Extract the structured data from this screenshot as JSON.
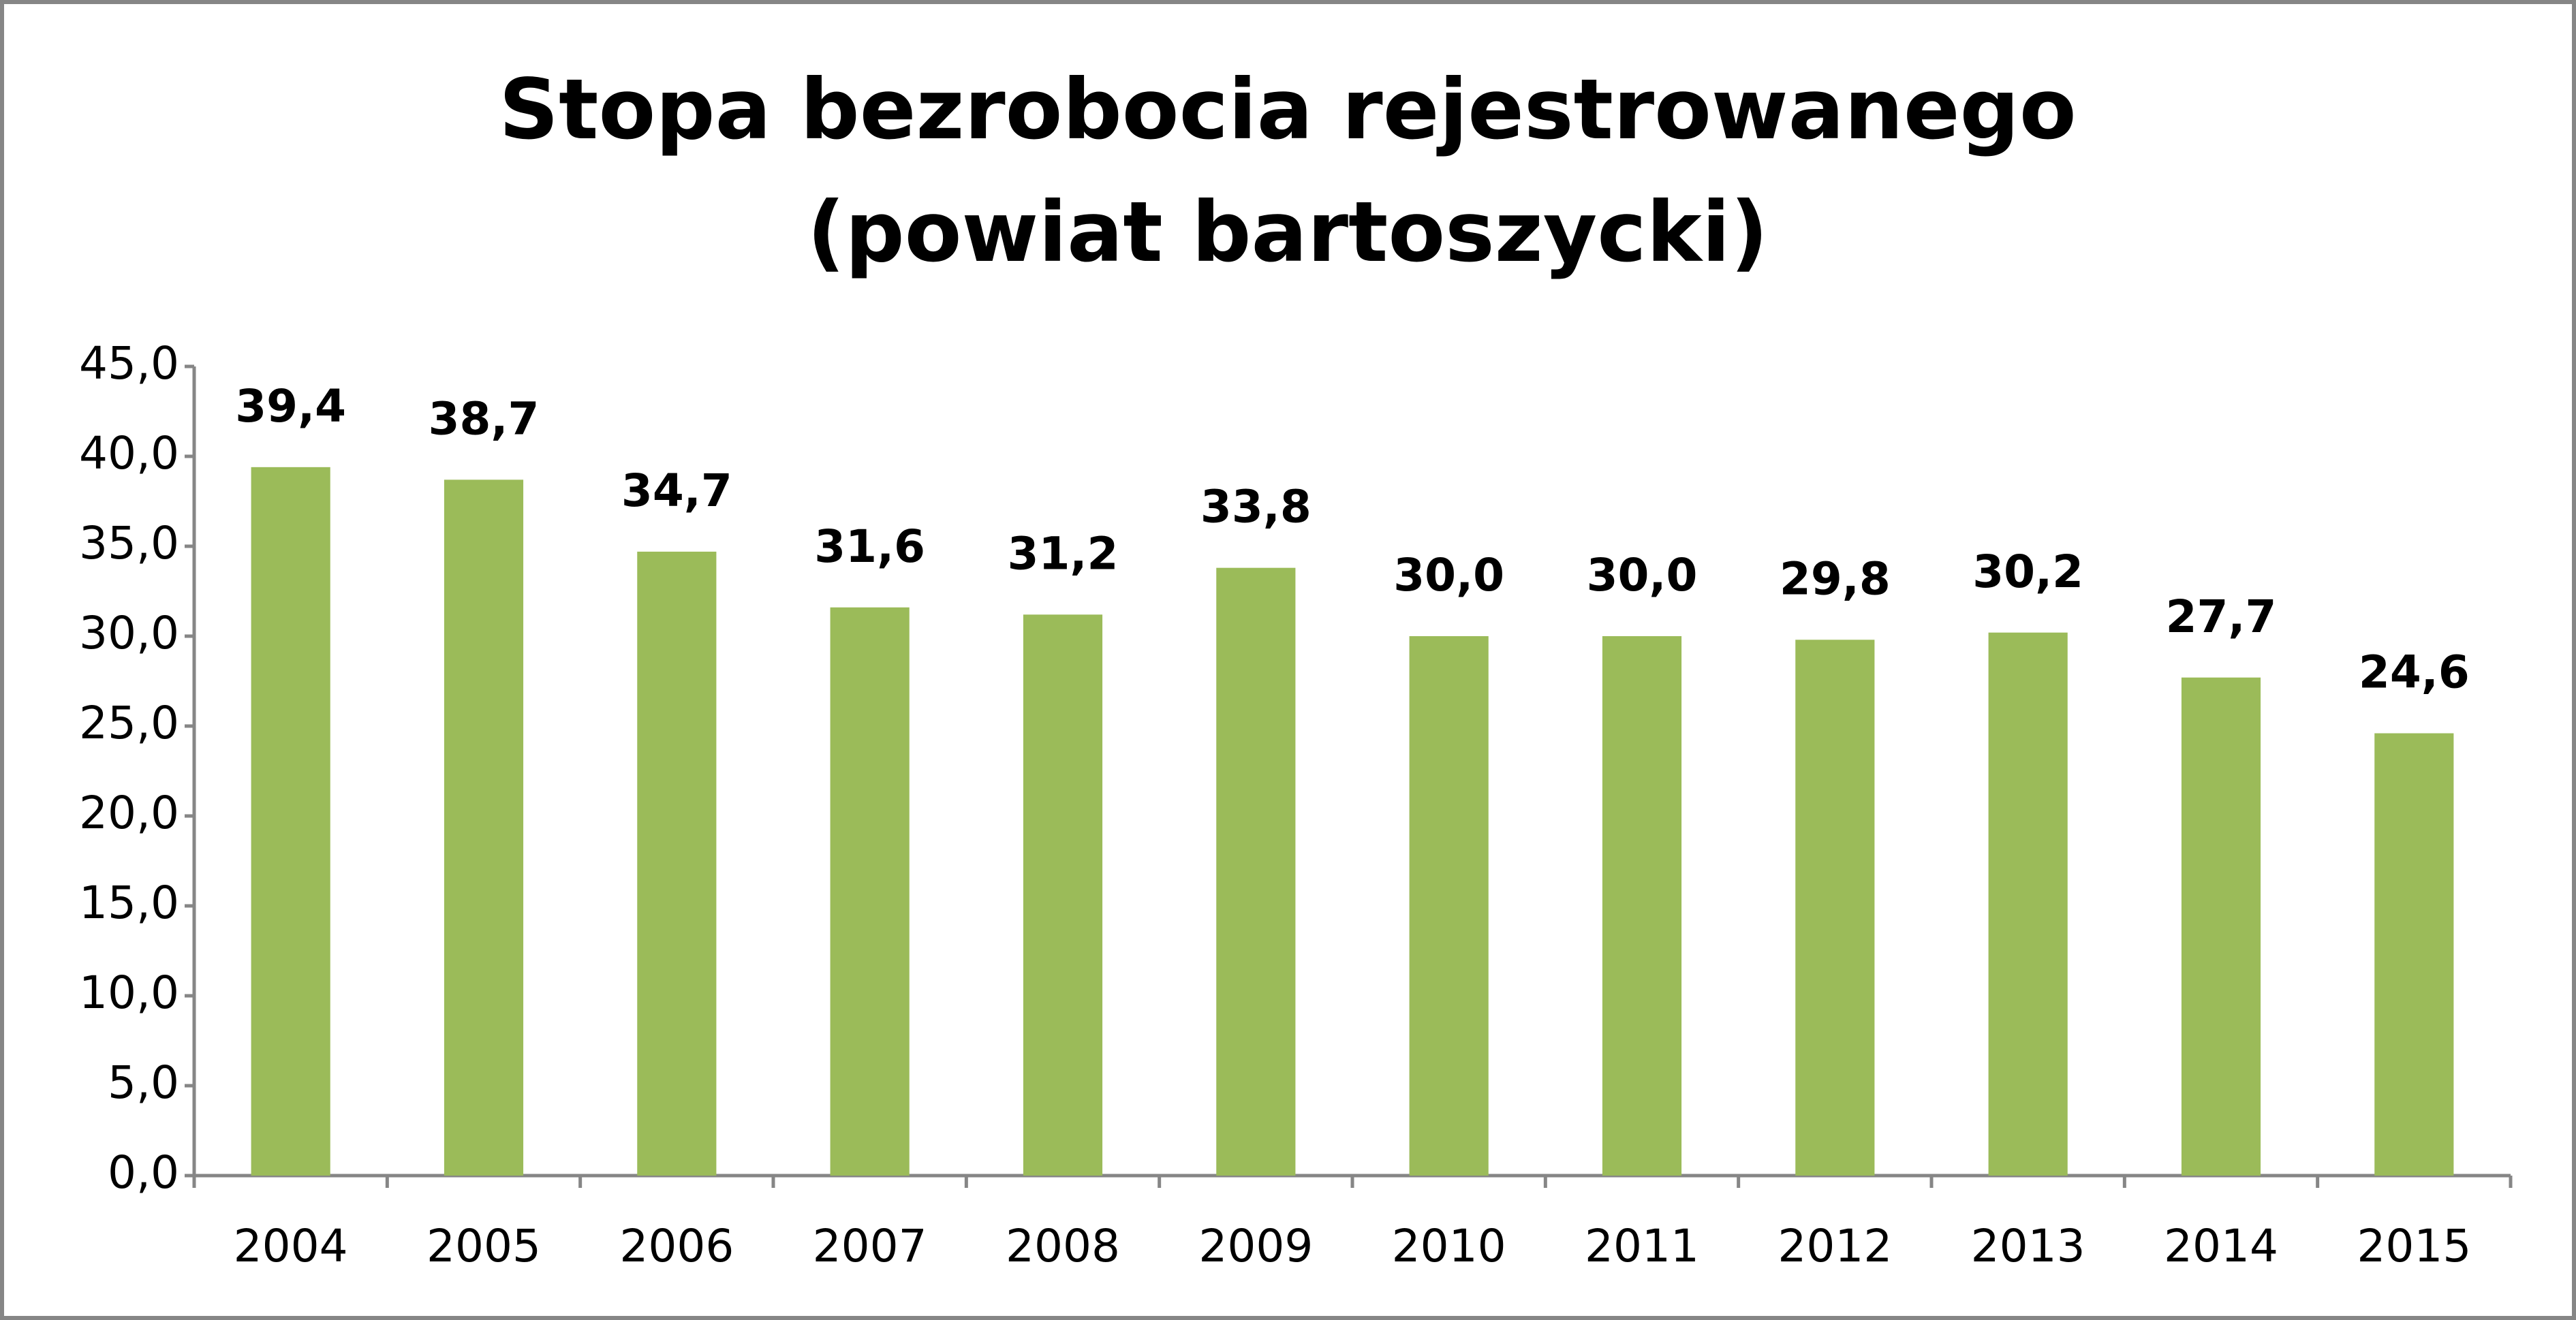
{
  "chart_data": {
    "type": "bar",
    "title": [
      "Stopa bezrobocia rejestrowanego",
      "(powiat bartoszycki)"
    ],
    "categories": [
      "2004",
      "2005",
      "2006",
      "2007",
      "2008",
      "2009",
      "2010",
      "2011",
      "2012",
      "2013",
      "2014",
      "2015"
    ],
    "values": [
      39.4,
      38.7,
      34.7,
      31.6,
      31.2,
      33.8,
      30.0,
      30.0,
      29.8,
      30.2,
      27.7,
      24.6
    ],
    "value_labels": [
      "39,4",
      "38,7",
      "34,7",
      "31,6",
      "31,2",
      "33,8",
      "30,0",
      "30,0",
      "29,8",
      "30,2",
      "27,7",
      "24,6"
    ],
    "color": "#9bbb59",
    "ylim": [
      0,
      45
    ],
    "yticks": [
      {
        "value": 0,
        "label": "0,0"
      },
      {
        "value": 5,
        "label": "5,0"
      },
      {
        "value": 10,
        "label": "10,0"
      },
      {
        "value": 15,
        "label": "15,0"
      },
      {
        "value": 20,
        "label": "20,0"
      },
      {
        "value": 25,
        "label": "25,0"
      },
      {
        "value": 30,
        "label": "30,0"
      },
      {
        "value": 35,
        "label": "35,0"
      },
      {
        "value": 40,
        "label": "40,0"
      },
      {
        "value": 45,
        "label": "45,0"
      }
    ],
    "grid": false
  }
}
